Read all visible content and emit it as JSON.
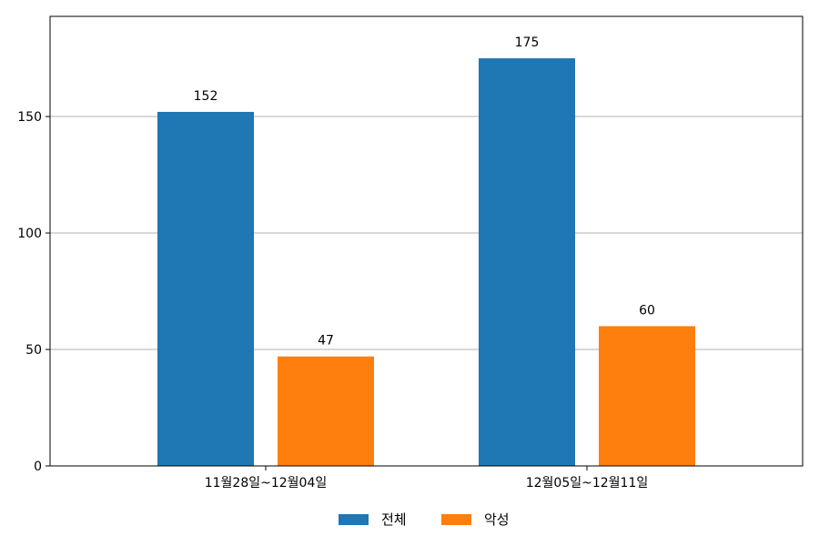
{
  "chart_data": {
    "type": "bar",
    "categories": [
      "11월28일~12월04일",
      "12월05일~12월11일"
    ],
    "series": [
      {
        "name": "전체",
        "values": [
          152,
          175
        ],
        "color": "#1f77b4"
      },
      {
        "name": "악성",
        "values": [
          47,
          60
        ],
        "color": "#ff7f0e"
      }
    ],
    "ylim": [
      0,
      193
    ],
    "yticks": [
      0,
      50,
      100,
      150
    ],
    "grid": "y",
    "legend_position": "bottom-center",
    "data_labels": true
  }
}
